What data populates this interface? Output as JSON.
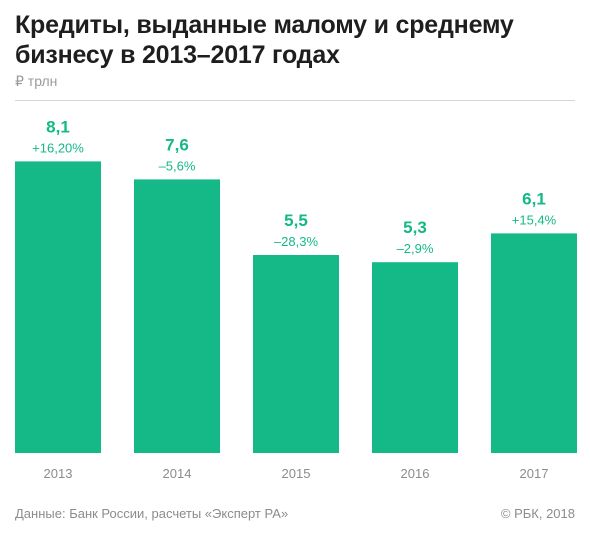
{
  "title": "Кредиты, выданные малому и среднему бизнесу в 2013–2017 годах",
  "unit_label": "₽ трлн",
  "footer": {
    "source": "Данные: Банк России, расчеты «Эксперт РА»",
    "copyright": "© РБК, 2018"
  },
  "colors": {
    "bar": "#14b987",
    "value_label": "#14b987",
    "change_label": "#14b987",
    "axis_label": "#8c8c8c"
  },
  "chart_data": {
    "type": "bar",
    "title": "Кредиты, выданные малому и среднему бизнесу в 2013–2017 годах",
    "ylabel": "₽ трлн",
    "ylim": [
      0,
      9.5
    ],
    "grid": false,
    "categories": [
      "2013",
      "2014",
      "2015",
      "2016",
      "2017"
    ],
    "values": [
      8.1,
      7.6,
      5.5,
      5.3,
      6.1
    ],
    "value_labels": [
      "8,1",
      "7,6",
      "5,5",
      "5,3",
      "6,1"
    ],
    "change_labels": [
      "+16,20%",
      "–5,6%",
      "–28,3%",
      "–2,9%",
      "+15,4%"
    ]
  }
}
